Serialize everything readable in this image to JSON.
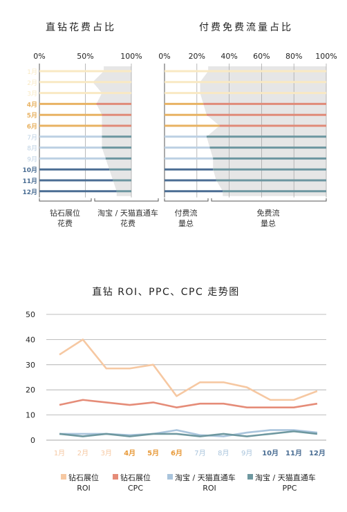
{
  "colors": {
    "spring_light": "#f9e9c3",
    "summer": "#e8b262",
    "summer_red": "#e08a78",
    "autumn_light": "#bcd0e3",
    "autumn_teal": "#6c96a0",
    "winter": "#4a6d93",
    "gray_fill": "#e6e6e6",
    "grid": "#a8a8a8",
    "line_roi": "#f6c8a2",
    "line_cpc": "#e58c78",
    "line_ttroi": "#a9c4dc",
    "line_ttppc": "#6e98a0"
  },
  "chart_data": [
    {
      "type": "bar",
      "title": "直钻花费占比",
      "x_ticks": [
        "0%",
        "50%",
        "100%"
      ],
      "categories": [
        "1月",
        "2月",
        "3月",
        "4月",
        "5月",
        "6月",
        "7月",
        "8月",
        "9月",
        "10月",
        "11月",
        "12月"
      ],
      "series": [
        {
          "name": "钻石展位花费",
          "values": [
            70,
            58,
            68,
            62,
            68,
            68,
            68,
            68,
            72,
            76,
            80,
            84
          ]
        },
        {
          "name": "淘宝/天猫直通车花费",
          "values": [
            30,
            42,
            32,
            38,
            32,
            32,
            32,
            32,
            28,
            24,
            20,
            16
          ]
        }
      ],
      "bracket_labels": [
        {
          "line1": "钻石展位",
          "line2": "花费"
        },
        {
          "line1": "淘宝 / 天猫直通车",
          "line2": "花费"
        }
      ]
    },
    {
      "type": "bar",
      "title": "付费免费流量占比",
      "x_ticks": [
        "0%",
        "20%",
        "40%",
        "60%",
        "80%",
        "100%"
      ],
      "categories": [
        "1月",
        "2月",
        "3月",
        "4月",
        "5月",
        "6月",
        "7月",
        "8月",
        "9月",
        "10月",
        "11月",
        "12月"
      ],
      "series": [
        {
          "name": "付费流量总",
          "values": [
            27,
            22,
            22,
            24,
            26,
            34,
            26,
            28,
            30,
            30,
            32,
            36
          ]
        },
        {
          "name": "免费流量总",
          "values": [
            73,
            78,
            78,
            76,
            74,
            66,
            74,
            72,
            70,
            70,
            68,
            64
          ]
        }
      ],
      "bracket_labels": [
        {
          "line1": "付费流",
          "line2": "量总"
        },
        {
          "line1": "免费流",
          "line2": "量总"
        }
      ]
    },
    {
      "type": "line",
      "title": "直钻 ROI、PPC、CPC 走势图",
      "categories": [
        "1月",
        "2月",
        "3月",
        "4月",
        "5月",
        "6月",
        "7月",
        "8月",
        "9月",
        "10月",
        "11月",
        "12月"
      ],
      "ylim": [
        0,
        50
      ],
      "y_ticks": [
        0,
        10,
        20,
        30,
        40,
        50
      ],
      "grid": true,
      "legend_position": "bottom",
      "series": [
        {
          "name": "钻石展位 ROI",
          "legend_line1": "钻石展位",
          "legend_line2": "ROI",
          "values": [
            34.0,
            40.0,
            28.5,
            28.5,
            30.0,
            17.5,
            23.0,
            23.0,
            21.0,
            16.0,
            16.0,
            19.5
          ]
        },
        {
          "name": "钻石展位 CPC",
          "legend_line1": "钻石展位",
          "legend_line2": "CPC",
          "values": [
            14.0,
            16.0,
            15.0,
            14.0,
            15.0,
            13.0,
            14.5,
            14.5,
            13.0,
            13.0,
            13.0,
            14.5
          ]
        },
        {
          "name": "淘宝 / 天猫直通车 ROI",
          "legend_line1": "淘宝 / 天猫直通车",
          "legend_line2": "ROI",
          "values": [
            2.5,
            2.5,
            2.5,
            2.0,
            2.5,
            4.0,
            2.0,
            1.5,
            3.0,
            4.0,
            4.0,
            3.0
          ]
        },
        {
          "name": "淘宝 / 天猫直通车 PPC",
          "legend_line1": "淘宝 / 天猫直通车",
          "legend_line2": "PPC",
          "values": [
            2.5,
            1.5,
            2.5,
            1.5,
            2.5,
            2.5,
            1.5,
            2.5,
            1.5,
            2.5,
            3.5,
            2.5
          ]
        }
      ]
    }
  ]
}
